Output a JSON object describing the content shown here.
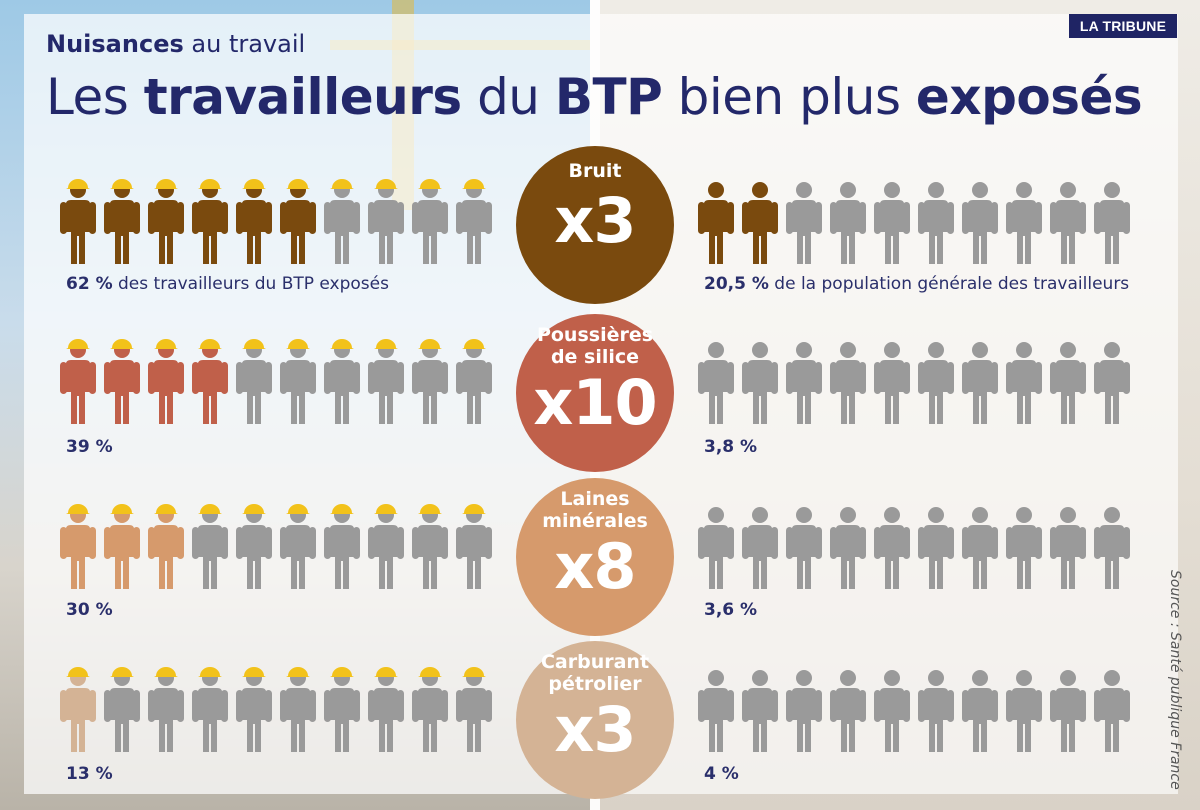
{
  "header": {
    "logo": "LA TRIBUNE",
    "kicker_bold": "Nuisances",
    "kicker_rest": " au travail",
    "title_parts": [
      {
        "text": "Les ",
        "bold": false
      },
      {
        "text": "travailleurs",
        "bold": true
      },
      {
        "text": " du ",
        "bold": false
      },
      {
        "text": "BTP",
        "bold": true
      },
      {
        "text": " bien plus ",
        "bold": false
      },
      {
        "text": "exposés",
        "bold": true
      }
    ]
  },
  "source": "Source : Santé publique France",
  "colors": {
    "inactive": "#9a9a9a",
    "helmet": "#f2c21a",
    "text": "#23286a"
  },
  "chart_data": {
    "type": "pictogram",
    "icons_per_row": 10,
    "rows": [
      {
        "label_lines": [
          "Bruit"
        ],
        "multiplier": "x3",
        "color": "#7a4a0e",
        "btp_value": 62,
        "btp_label_bold": "62 %",
        "btp_label_rest": " des travailleurs du BTP exposés",
        "general_value": 20.5,
        "general_label_bold": "20,5 %",
        "general_label_rest": " de la population générale des travailleurs"
      },
      {
        "label_lines": [
          "Poussières",
          "de silice"
        ],
        "multiplier": "x10",
        "color": "#c0604a",
        "btp_value": 39,
        "btp_label_bold": "39 %",
        "btp_label_rest": "",
        "general_value": 3.8,
        "general_label_bold": "3,8 %",
        "general_label_rest": ""
      },
      {
        "label_lines": [
          "Laines",
          "minérales"
        ],
        "multiplier": "x8",
        "color": "#d69a6c",
        "btp_value": 30,
        "btp_label_bold": "30 %",
        "btp_label_rest": "",
        "general_value": 3.6,
        "general_label_bold": "3,6 %",
        "general_label_rest": ""
      },
      {
        "label_lines": [
          "Carburant",
          "pétrolier"
        ],
        "multiplier": "x3",
        "color": "#d4b395",
        "btp_value": 13,
        "btp_label_bold": "13 %",
        "btp_label_rest": "",
        "general_value": 4,
        "general_label_bold": "4 %",
        "general_label_rest": ""
      }
    ]
  }
}
